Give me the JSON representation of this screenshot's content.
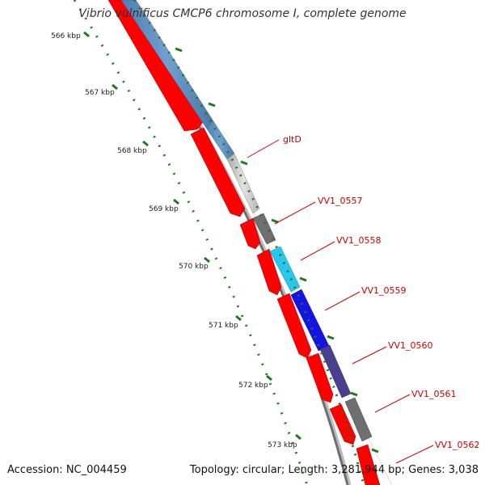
{
  "title": "Vibrio vulnificus CMCP6 chromosome I, complete genome",
  "accession": "Accession: NC_004459",
  "topology": "Topology: circular; Length: 3,281,944 bp; Genes: 3,038",
  "ruler_labels": [
    "566 kbp",
    "567 kbp",
    "568 kbp",
    "569 kbp",
    "570 kbp",
    "571 kbp",
    "572 kbp",
    "573 kbp"
  ],
  "gene_labels": [
    "gltD",
    "VV1_0557",
    "VV1_0558",
    "VV1_0559",
    "VV1_0560",
    "VV1_0561",
    "VV1_0562"
  ],
  "colors": {
    "cds": "#ff0000",
    "backbone": "#7a7a7a",
    "ruler": "#1e7a1e",
    "label": "#cc0000"
  }
}
